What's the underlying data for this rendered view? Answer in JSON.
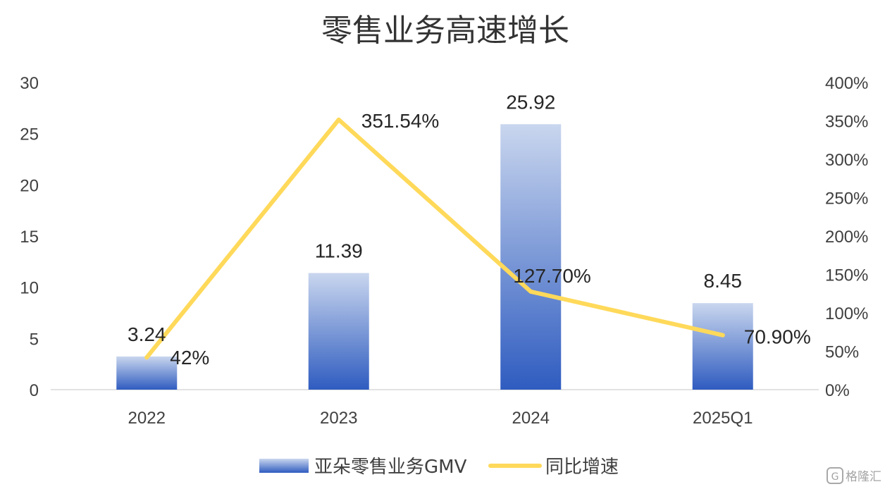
{
  "chart_data": {
    "type": "bar",
    "title": "零售业务高速增长",
    "categories": [
      "2022",
      "2023",
      "2024",
      "2025Q1"
    ],
    "y_left": {
      "range": [
        0,
        30
      ],
      "ticks": [
        "0",
        "5",
        "10",
        "15",
        "20",
        "25",
        "30"
      ]
    },
    "y_right": {
      "range": [
        0,
        4
      ],
      "ticks": [
        "0%",
        "50%",
        "100%",
        "150%",
        "200%",
        "250%",
        "300%",
        "350%",
        "400%"
      ]
    },
    "series": [
      {
        "name": "亚朵零售业务GMV",
        "type": "bar",
        "axis": "left",
        "values": [
          3.24,
          11.39,
          25.92,
          8.45
        ],
        "labels": [
          "3.24",
          "11.39",
          "25.92",
          "8.45"
        ],
        "color_top": "#c9d6ee",
        "color_bottom": "#2f5cc0"
      },
      {
        "name": "同比增速",
        "type": "line",
        "axis": "right",
        "values": [
          0.42,
          3.5154,
          1.277,
          0.709
        ],
        "labels": [
          "42%",
          "351.54%",
          "127.70%",
          "70.90%"
        ],
        "color": "#ffd95a"
      }
    ],
    "legend_position": "bottom",
    "grid": false
  },
  "watermark": {
    "icon": "gelonghui-logo-icon",
    "text": "格隆汇"
  }
}
